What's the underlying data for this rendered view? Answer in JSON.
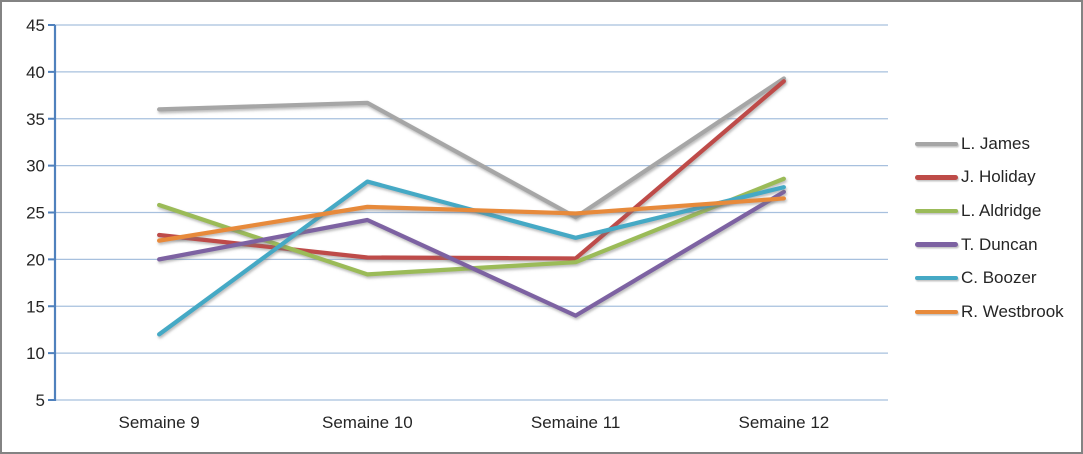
{
  "window": {
    "background_color": "#FFFFFF",
    "border_color": "#838383"
  },
  "chart_data": {
    "type": "line",
    "title": "",
    "categories": [
      "Semaine 9",
      "Semaine 10",
      "Semaine 11",
      "Semaine 12"
    ],
    "series": [
      {
        "name": "L. James",
        "color": "#A6A6A6",
        "values": [
          36,
          36.7,
          24.5,
          39.3
        ]
      },
      {
        "name": "J. Holiday",
        "color": "#BE4B48",
        "values": [
          22.6,
          20.2,
          20.1,
          39.0
        ]
      },
      {
        "name": "L. Aldridge",
        "color": "#9BBB59",
        "values": [
          25.8,
          18.4,
          19.7,
          28.6
        ]
      },
      {
        "name": "T. Duncan",
        "color": "#7D62A2",
        "values": [
          20,
          24.2,
          14,
          27.2
        ]
      },
      {
        "name": "C. Boozer",
        "color": "#45A9C5",
        "values": [
          12,
          28.3,
          22.3,
          27.7
        ]
      },
      {
        "name": "R. Westbrook",
        "color": "#E78A3B",
        "values": [
          22,
          25.6,
          24.9,
          26.5
        ]
      }
    ],
    "ylim": [
      5,
      45
    ],
    "y_ticks": [
      45,
      40,
      35,
      30,
      25,
      20,
      15,
      10,
      5
    ],
    "grid": true,
    "legend_position": "right",
    "axis_color": "#4F81BD",
    "gridline_color": "#A7C0DE",
    "tick_label_color": "#252525"
  }
}
